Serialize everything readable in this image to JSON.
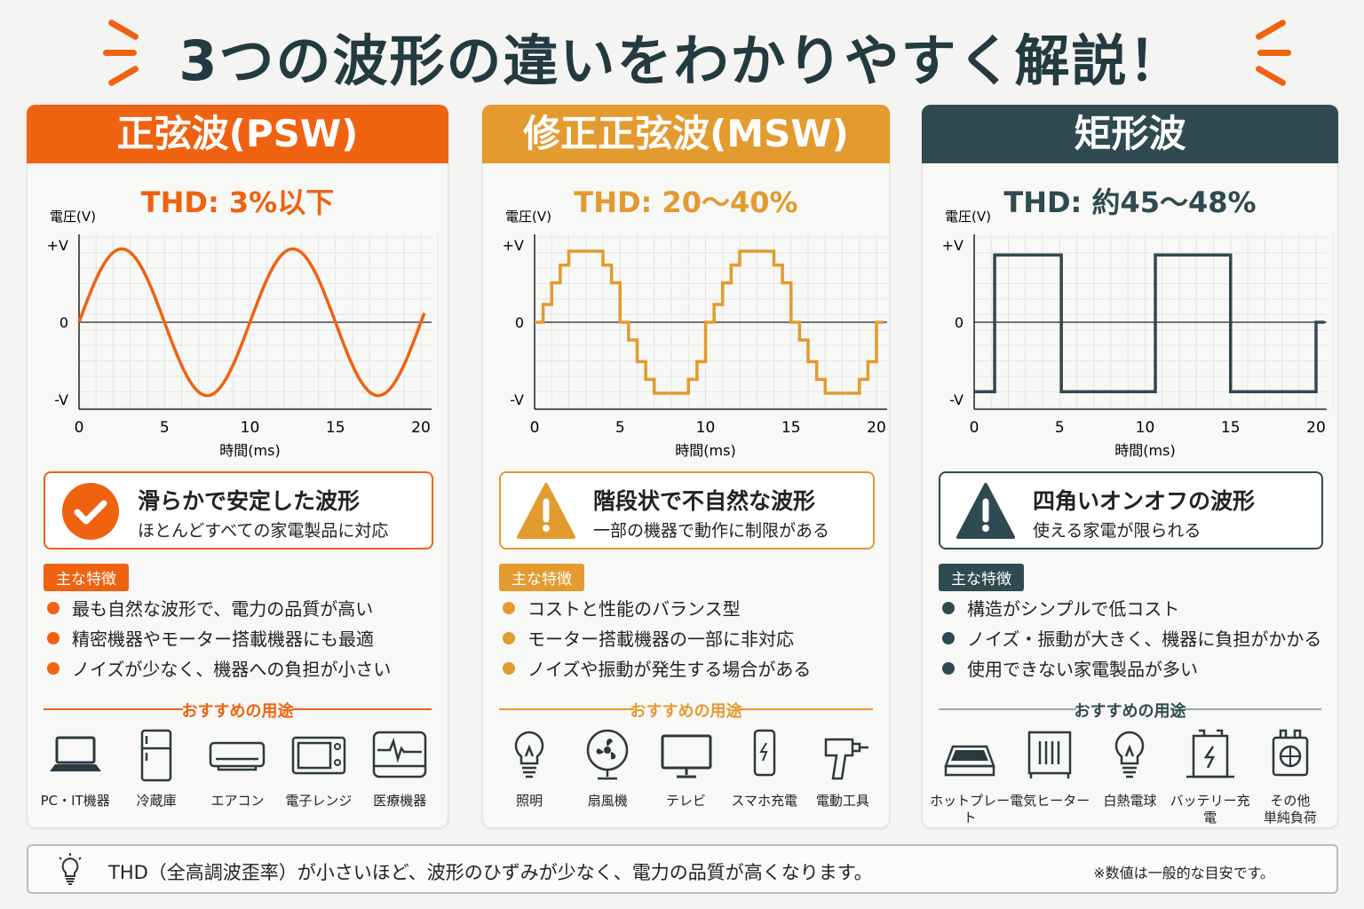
{
  "title": "3つの波形の違いをわかりやすく解説！",
  "colors": {
    "psw": "#ef6210",
    "msw": "#e39a2e",
    "square": "#2f4a50",
    "title": "#233a40"
  },
  "panels": [
    {
      "key": "psw",
      "header": "正弦波(PSW)",
      "thd": "THD: 3%以下",
      "callout": {
        "icon": "check-circle-icon",
        "title": "滑らかで安定した波形",
        "subtitle": "ほとんどすべての家電製品に対応"
      },
      "tag": "主な特徴",
      "bullets": [
        "最も自然な波形で、電力の品質が高い",
        "精密機器やモーター搭載機器にも最適",
        "ノイズが少なく、機器への負担が小さい"
      ],
      "uses_heading": "おすすめの用途",
      "uses": [
        {
          "label": "PC・IT機器",
          "icon": "laptop-icon"
        },
        {
          "label": "冷蔵庫",
          "icon": "refrigerator-icon"
        },
        {
          "label": "エアコン",
          "icon": "air-conditioner-icon"
        },
        {
          "label": "電子レンジ",
          "icon": "microwave-icon"
        },
        {
          "label": "医療機器",
          "icon": "medical-monitor-icon"
        }
      ]
    },
    {
      "key": "msw",
      "header": "修正正弦波(MSW)",
      "thd": "THD: 20〜40%",
      "callout": {
        "icon": "warning-icon",
        "title": "階段状で不自然な波形",
        "subtitle": "一部の機器で動作に制限がある"
      },
      "tag": "主な特徴",
      "bullets": [
        "コストと性能のバランス型",
        "モーター搭載機器の一部に非対応",
        "ノイズや振動が発生する場合がある"
      ],
      "uses_heading": "おすすめの用途",
      "uses": [
        {
          "label": "照明",
          "icon": "light-bulb-icon"
        },
        {
          "label": "扇風機",
          "icon": "fan-icon"
        },
        {
          "label": "テレビ",
          "icon": "tv-icon"
        },
        {
          "label": "スマホ充電",
          "icon": "smartphone-charging-icon"
        },
        {
          "label": "電動工具",
          "icon": "power-drill-icon"
        }
      ]
    },
    {
      "key": "square",
      "header": "矩形波",
      "thd": "THD: 約45〜48%",
      "callout": {
        "icon": "warning-icon",
        "title": "四角いオンオフの波形",
        "subtitle": "使える家電が限られる"
      },
      "tag": "主な特徴",
      "bullets": [
        "構造がシンプルで低コスト",
        "ノイズ・振動が大きく、機器に負担がかかる",
        "使用できない家電製品が多い"
      ],
      "uses_heading": "おすすめの用途",
      "uses": [
        {
          "label": "ホットプレート",
          "icon": "hot-plate-icon"
        },
        {
          "label": "電気ヒーター",
          "icon": "electric-heater-icon"
        },
        {
          "label": "白熱電球",
          "icon": "incandescent-bulb-icon"
        },
        {
          "label": "バッテリー充電",
          "icon": "battery-charging-icon"
        },
        {
          "label": "その他\n単純負荷",
          "icon": "simple-load-icon"
        }
      ]
    }
  ],
  "chart_data": [
    {
      "type": "line",
      "title": "",
      "ylabel": "電圧(V)",
      "xlabel": "時間(ms)",
      "xlim": [
        0,
        20
      ],
      "xticks": [
        0,
        5,
        10,
        15,
        20
      ],
      "yticks": [
        {
          "v": 1,
          "label": "+V"
        },
        {
          "v": 0,
          "label": "0"
        },
        {
          "v": -1,
          "label": "-V"
        }
      ],
      "grid": true,
      "series": [
        {
          "waveform": "sine",
          "period_ms": 10,
          "amplitude": 0.95,
          "color": "#ef6210"
        }
      ]
    },
    {
      "type": "line",
      "title": "",
      "ylabel": "電圧(V)",
      "xlabel": "時間(ms)",
      "xlim": [
        0,
        20
      ],
      "xticks": [
        0,
        5,
        10,
        15,
        20
      ],
      "yticks": [
        {
          "v": 1,
          "label": "+V"
        },
        {
          "v": 0,
          "label": "0"
        },
        {
          "v": -1,
          "label": "-V"
        }
      ],
      "grid": true,
      "series": [
        {
          "waveform": "stepped",
          "period_ms": 10,
          "step_ms": 0.5,
          "half_cycle_levels": [
            0,
            0.23,
            0.51,
            0.74,
            0.92,
            0.92,
            0.92,
            0.92,
            0.74,
            0.51
          ],
          "color": "#e39a2e"
        }
      ]
    },
    {
      "type": "line",
      "title": "",
      "ylabel": "電圧(V)",
      "xlabel": "時間(ms)",
      "xlim": [
        0,
        20
      ],
      "xticks": [
        0,
        5,
        10,
        15,
        20
      ],
      "yticks": [
        {
          "v": 1,
          "label": "+V"
        },
        {
          "v": 0,
          "label": "0"
        },
        {
          "v": -1,
          "label": "-V"
        }
      ],
      "grid": true,
      "series": [
        {
          "waveform": "square",
          "points": [
            [
              0,
              -0.9
            ],
            [
              1.2,
              -0.9
            ],
            [
              1.2,
              0.87
            ],
            [
              5.1,
              0.87
            ],
            [
              5.1,
              -0.9
            ],
            [
              10.6,
              -0.9
            ],
            [
              10.6,
              0.87
            ],
            [
              15,
              0.87
            ],
            [
              15,
              -0.9
            ],
            [
              20,
              -0.9
            ],
            [
              20,
              0
            ],
            [
              20.5,
              0
            ]
          ],
          "color": "#2f4a50"
        }
      ]
    }
  ],
  "footer": {
    "message": "THD（全高調波歪率）が小さいほど、波形のひずみが少なく、電力の品質が高くなります。",
    "note": "※数値は一般的な目安です。",
    "icon": "light-bulb-icon"
  }
}
